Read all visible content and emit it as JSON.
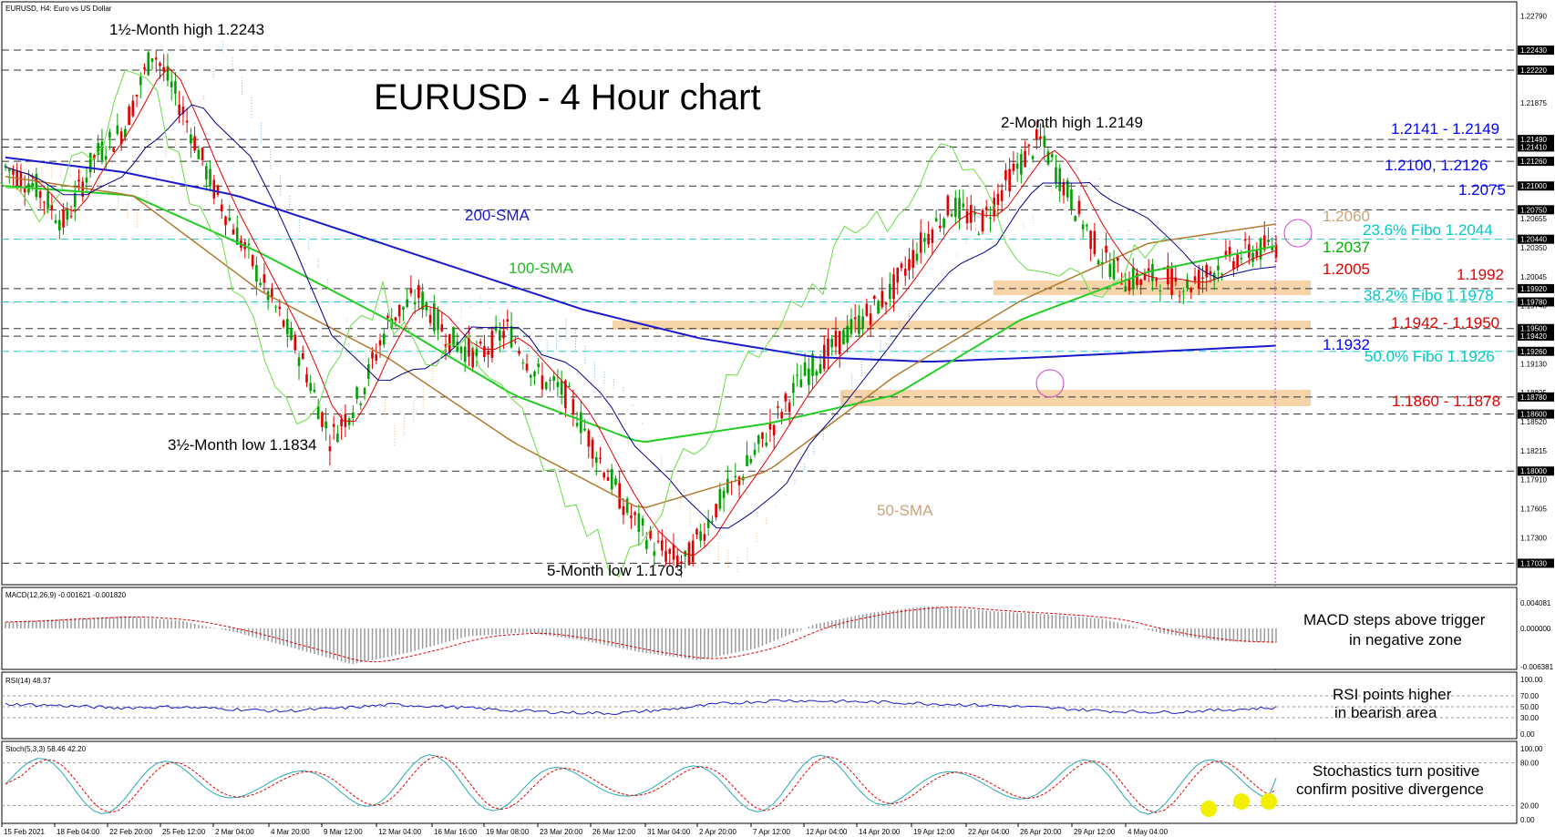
{
  "chart_data": [
    {
      "panel": "price",
      "type": "candlestick",
      "header": "EURUSD, H4:  Euro vs US Dollar",
      "title": "EURUSD - 4 Hour chart",
      "x_ticks": [
        "15 Feb 2021",
        "18 Feb 04:00",
        "22 Feb 20:00",
        "25 Feb 12:00",
        "2 Mar 04:00",
        "4 Mar 20:00",
        "9 Mar 12:00",
        "12 Mar 04:00",
        "16 Mar 16:00",
        "19 Mar 08:00",
        "23 Mar 20:00",
        "26 Mar 12:00",
        "31 Mar 04:00",
        "2 Apr 20:00",
        "7 Apr 12:00",
        "12 Apr 04:00",
        "14 Apr 20:00",
        "19 Apr 12:00",
        "22 Apr 04:00",
        "26 Apr 20:00",
        "29 Apr 12:00",
        "4 May 04:00"
      ],
      "y_ticks": [
        "1.22790",
        "1.21875",
        "1.21410",
        "1.20655",
        "1.20350",
        "1.20045",
        "1.19740",
        "1.19435",
        "1.19130",
        "1.18825",
        "1.18520",
        "1.18215",
        "1.17910",
        "1.17605",
        "1.17300"
      ],
      "ylim": [
        1.169,
        1.229
      ],
      "price_series": [
        1.212,
        1.21,
        1.206,
        1.213,
        1.216,
        1.2243,
        1.218,
        1.21,
        1.204,
        1.198,
        1.192,
        1.1834,
        1.188,
        1.196,
        1.1985,
        1.194,
        1.192,
        1.195,
        1.19,
        1.188,
        1.182,
        1.176,
        1.172,
        1.1703,
        1.176,
        1.18,
        1.185,
        1.19,
        1.193,
        1.196,
        1.199,
        1.204,
        1.208,
        1.206,
        1.211,
        1.2149,
        1.209,
        1.203,
        1.2,
        1.2005,
        1.1995,
        1.2015,
        1.203,
        1.2037
      ],
      "indicators": {
        "sma200": [
          1.213,
          1.2115,
          1.209,
          1.205,
          1.201,
          1.197,
          1.194,
          1.192,
          1.1915,
          1.192,
          1.1926,
          1.1932
        ],
        "sma100": [
          1.21,
          1.209,
          1.203,
          1.196,
          1.188,
          1.183,
          1.185,
          1.188,
          1.196,
          1.201,
          1.2037
        ],
        "sma50": [
          1.211,
          1.209,
          1.199,
          1.192,
          1.183,
          1.176,
          1.18,
          1.19,
          1.198,
          1.204,
          1.206
        ]
      },
      "levels": [
        {
          "label": "1.2141 - 1.2149",
          "color": "#0000ff"
        },
        {
          "label": "1.2100, 1.2126",
          "color": "#0000ff"
        },
        {
          "label": "1.2075",
          "color": "#0000ff"
        },
        {
          "label": "1.2060",
          "color": "#c9a27a"
        },
        {
          "label": "23.6% Fibo 1.2044",
          "color": "#00c8c8"
        },
        {
          "label": "1.2037",
          "color": "#00b000"
        },
        {
          "label": "1.2005",
          "color": "#e00000"
        },
        {
          "label": "1.1992",
          "color": "#e00000"
        },
        {
          "label": "38.2% Fibo 1.1978",
          "color": "#00c8c8"
        },
        {
          "label": "1.1942 - 1.1950",
          "color": "#e00000"
        },
        {
          "label": "1.1932",
          "color": "#0000ff"
        },
        {
          "label": "50.0% Fibo 1.1926",
          "color": "#00c8c8"
        },
        {
          "label": "1.1860 - 1.1878",
          "color": "#e00000"
        }
      ],
      "annotations": [
        "1½-Month high 1.2243",
        "2-Month high 1.2149",
        "3½-Month low 1.1834",
        "5-Month low 1.1703",
        "200-SMA",
        "100-SMA",
        "50-SMA"
      ],
      "price_tags": [
        "1.22430",
        "1.22220",
        "1.21490",
        "1.21410",
        "1.21260",
        "1.21000",
        "1.20750",
        "1.20440",
        "1.19920",
        "1.19780",
        "1.19500",
        "1.19420",
        "1.19260",
        "1.18780",
        "1.18600",
        "1.18000",
        "1.17030"
      ],
      "colors": {
        "up": "#00a000",
        "down": "#e00000",
        "sma200": "#1a1acc",
        "sma100": "#22cc22",
        "sma50": "#b07a30",
        "kijun": "#00008b",
        "tenkan": "#e00000",
        "chikou": "#66dd44",
        "cloud_a": "#f3b37a",
        "cloud_b": "#6aaee8",
        "zone": "#f4d4a8"
      }
    },
    {
      "panel": "macd",
      "type": "bar",
      "header": "MACD(12,26,9) -0.001621 -0.001820",
      "y_ticks": [
        "0.004081",
        "0.000000",
        "-0.006381"
      ],
      "annotation": [
        "MACD steps above trigger",
        "in negative zone"
      ],
      "values": [
        0.0008,
        0.0012,
        0.0015,
        0.001,
        -0.0005,
        -0.0025,
        -0.0045,
        -0.003,
        -0.001,
        -0.0005,
        -0.0015,
        -0.003,
        -0.004,
        -0.0025,
        0.0005,
        0.002,
        0.0028,
        0.0022,
        0.0018,
        0.0012,
        -0.0006,
        -0.0016,
        -0.0018
      ]
    },
    {
      "panel": "rsi",
      "type": "line",
      "header": "RSI(14) 48.37",
      "y_ticks": [
        "100.00",
        "70.00",
        "50.00",
        "30.00",
        "0.00"
      ],
      "annotation": [
        "RSI points higher",
        "in bearish area"
      ],
      "values": [
        55,
        52,
        48,
        50,
        46,
        42,
        47,
        54,
        50,
        44,
        40,
        38,
        45,
        56,
        62,
        60,
        58,
        55,
        52,
        47,
        42,
        40,
        44,
        48.37
      ]
    },
    {
      "panel": "stochastic",
      "type": "line",
      "header": "Stoch(5,3,3) 58.46 42.20",
      "y_ticks": [
        "100.00",
        "80.00",
        "20.00",
        "0.00"
      ],
      "annotation": [
        "Stochastics turn positive",
        "confirm positive divergence"
      ],
      "main": [
        80,
        40,
        20,
        70,
        90,
        30,
        15,
        60,
        85,
        40,
        20,
        75,
        88,
        30,
        12,
        55,
        80,
        35,
        15,
        70,
        90,
        25,
        10,
        45,
        58.46
      ],
      "signal": [
        70,
        55,
        30,
        50,
        80,
        50,
        25,
        40,
        75,
        55,
        30,
        55,
        82,
        45,
        22,
        40,
        70,
        50,
        25,
        55,
        82,
        40,
        18,
        30,
        42.2
      ]
    }
  ]
}
